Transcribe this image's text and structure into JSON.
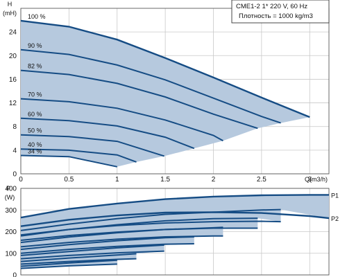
{
  "chart_data": [
    {
      "type": "line",
      "title": "CME1-2   1* 220 V, 60 Hz",
      "subtitle": "Плотность = 1000 kg/m3",
      "y_axis_symbol": "H",
      "y_axis_unit": "(mH)",
      "x_axis_label": "Q(m3/h)",
      "xlim": [
        0,
        3.2
      ],
      "ylim": [
        0,
        28
      ],
      "x_ticks": [
        "0",
        "0.5",
        "1",
        "1.5",
        "2",
        "2.5",
        "3"
      ],
      "y_ticks": [
        "0",
        "4",
        "8",
        "12",
        "16",
        "20",
        "24"
      ],
      "grid": true,
      "series": [
        {
          "name": "100 %",
          "x": [
            0,
            0.5,
            1.0,
            1.5,
            2.0,
            2.5,
            3.0,
            3.0
          ],
          "y": [
            25.9,
            24.9,
            22.7,
            19.6,
            16.3,
            12.9,
            9.6,
            9.6
          ]
        },
        {
          "name": "90 %",
          "x": [
            0,
            0.5,
            1.0,
            1.5,
            2.0,
            2.5,
            2.7
          ],
          "y": [
            21.0,
            20.2,
            18.4,
            15.9,
            12.8,
            9.7,
            8.6
          ]
        },
        {
          "name": "82 %",
          "x": [
            0,
            0.5,
            1.0,
            1.5,
            2.0,
            2.46
          ],
          "y": [
            17.5,
            16.8,
            15.3,
            13.0,
            10.1,
            7.7
          ]
        },
        {
          "name": "70 %",
          "x": [
            0,
            0.5,
            1.0,
            1.5,
            2.0,
            2.1
          ],
          "y": [
            12.7,
            12.2,
            11.1,
            9.1,
            6.5,
            5.6
          ]
        },
        {
          "name": "60 %",
          "x": [
            0,
            0.5,
            1.0,
            1.5,
            1.8
          ],
          "y": [
            9.4,
            9.0,
            8.1,
            6.2,
            4.3
          ]
        },
        {
          "name": "50 %",
          "x": [
            0,
            0.5,
            1.0,
            1.49
          ],
          "y": [
            6.6,
            6.3,
            5.5,
            3.0
          ]
        },
        {
          "name": "40 %",
          "x": [
            0,
            0.5,
            1.0,
            1.2
          ],
          "y": [
            4.2,
            4.0,
            3.2,
            2.0
          ]
        },
        {
          "name": "34 %",
          "x": [
            0,
            0.5,
            1.0
          ],
          "y": [
            3.1,
            2.9,
            1.2
          ]
        }
      ]
    },
    {
      "type": "area",
      "y_axis_symbol": "P",
      "y_axis_unit": "(W)",
      "xlim": [
        0,
        3.2
      ],
      "ylim": [
        0,
        400
      ],
      "y_ticks": [
        "0",
        "100",
        "200",
        "300",
        "400"
      ],
      "grid": true,
      "series_labels": [
        "P1",
        "P2"
      ],
      "series": [
        {
          "name": "P1",
          "x": [
            0,
            0.5,
            1.0,
            1.5,
            2.0,
            2.5,
            3.0,
            3.2
          ],
          "y": [
            265,
            305,
            330,
            350,
            362,
            368,
            370,
            370
          ]
        },
        {
          "name": "P2",
          "x": [
            0,
            0.5,
            1.0,
            1.5,
            2.0,
            2.5,
            3.0,
            3.2
          ],
          "y": [
            225,
            255,
            275,
            288,
            290,
            286,
            272,
            262
          ]
        },
        {
          "x": [
            0,
            0.5,
            1.0,
            1.5,
            2.0,
            2.5,
            2.7
          ],
          "y": [
            205,
            235,
            260,
            280,
            290,
            300,
            302
          ]
        },
        {
          "x": [
            0,
            0.5,
            1.0,
            1.5,
            2.0,
            2.46
          ],
          "y": [
            180,
            210,
            232,
            250,
            260,
            262
          ]
        },
        {
          "x": [
            0,
            0.5,
            1.0,
            1.5,
            2.0,
            2.1
          ],
          "y": [
            150,
            175,
            195,
            210,
            218,
            220
          ]
        },
        {
          "x": [
            0,
            0.5,
            1.0,
            1.5,
            1.8
          ],
          "y": [
            118,
            140,
            158,
            172,
            176
          ]
        },
        {
          "x": [
            0,
            0.5,
            1.0,
            1.49
          ],
          "y": [
            90,
            108,
            125,
            138
          ]
        },
        {
          "x": [
            0,
            0.5,
            1.0,
            1.2
          ],
          "y": [
            62,
            78,
            92,
            98
          ]
        },
        {
          "x": [
            0,
            0.5,
            1.0
          ],
          "y": [
            40,
            55,
            68
          ]
        },
        {
          "x": [
            0,
            0.5,
            1.0,
            1.5,
            2.0,
            2.5,
            2.7
          ],
          "y": [
            185,
            210,
            228,
            240,
            246,
            248,
            246
          ]
        },
        {
          "x": [
            0,
            0.5,
            1.0,
            1.5,
            2.0,
            2.46
          ],
          "y": [
            160,
            182,
            198,
            210,
            216,
            216
          ]
        },
        {
          "x": [
            0,
            0.5,
            1.0,
            1.5,
            2.0,
            2.1
          ],
          "y": [
            130,
            150,
            165,
            176,
            180,
            180
          ]
        },
        {
          "x": [
            0,
            0.5,
            1.0,
            1.5,
            1.8
          ],
          "y": [
            100,
            118,
            132,
            142,
            144
          ]
        },
        {
          "x": [
            0,
            0.5,
            1.0,
            1.49
          ],
          "y": [
            75,
            90,
            102,
            110
          ]
        },
        {
          "x": [
            0,
            0.5,
            1.0,
            1.2
          ],
          "y": [
            50,
            62,
            72,
            75
          ]
        },
        {
          "x": [
            0,
            0.5,
            1.0
          ],
          "y": [
            30,
            42,
            50
          ]
        }
      ]
    }
  ]
}
